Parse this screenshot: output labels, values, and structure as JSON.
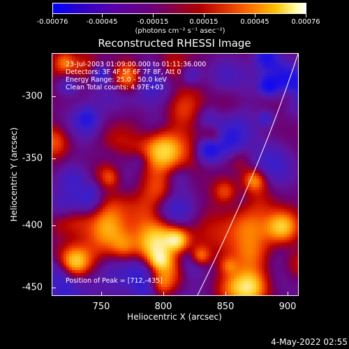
{
  "colorbar": {
    "labels": [
      "-0.00076",
      "-0.00045",
      "-0.00015",
      "0.00015",
      "0.00045",
      "0.00076"
    ],
    "units": "(photons cm⁻² s⁻¹ asec⁻²)"
  },
  "title": "Reconstructed RHESSI Image",
  "info": {
    "line1": "23-Jul-2003 01:09:00.000 to 01:11:36.000",
    "line2": "Detectors: 3F 4F 5F 6F 7F 8F, Att 0",
    "line3": "Energy Range: 25.0 - 50.0 keV",
    "line4": "Clean     Total counts: 4.97E+03"
  },
  "peak": "Position of Peak = [712,-435]",
  "axes": {
    "xlabel": "Heliocentric X (arcsec)",
    "ylabel": "Heliocentric Y (arcsec)",
    "xticks": [
      "750",
      "800",
      "850",
      "900"
    ],
    "yticks": [
      "-300",
      "-350",
      "-400",
      "-450"
    ]
  },
  "datestamp": "4-May-2022 02:55",
  "chart_data": {
    "type": "heatmap",
    "title": "Reconstructed RHESSI Image",
    "xlabel": "Heliocentric X (arcsec)",
    "ylabel": "Heliocentric Y (arcsec)",
    "xlim": [
      715,
      905
    ],
    "ylim": [
      -458,
      -272
    ],
    "color_range": [
      -0.00076,
      0.00076
    ],
    "colormap": [
      "#0000ff",
      "#5a00a8",
      "#b00000",
      "#ff7000",
      "#ffc000",
      "#ffffff"
    ]
  }
}
